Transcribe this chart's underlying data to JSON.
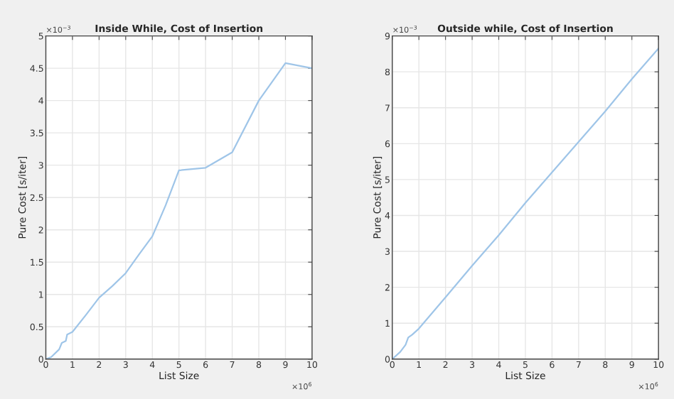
{
  "chart_data": [
    {
      "type": "line",
      "title": "Inside While, Cost of Insertion",
      "xlabel": "List Size",
      "ylabel": "Pure Cost [s/iter]",
      "annotations": [
        "×10$^{−3}$",
        "×10$^{6}$"
      ],
      "x": [
        0,
        0.2,
        0.5,
        0.6,
        0.75,
        0.8,
        1,
        1.5,
        2,
        2.5,
        3,
        3.5,
        4,
        4.5,
        5,
        6,
        7,
        8,
        9,
        10
      ],
      "series": [
        {
          "color": "#9fc5e8",
          "values": [
            0,
            0.03,
            0.15,
            0.25,
            0.28,
            0.38,
            0.42,
            0.68,
            0.95,
            1.13,
            1.33,
            1.62,
            1.9,
            2.38,
            2.92,
            2.96,
            3.2,
            4.0,
            4.58,
            4.5
          ]
        }
      ],
      "xlim": [
        0,
        10
      ],
      "xticks": [
        0,
        1,
        2,
        3,
        4,
        5,
        6,
        7,
        8,
        9,
        10
      ],
      "ylim": [
        0,
        5
      ],
      "yticks": [
        0,
        0.5,
        1,
        1.5,
        2,
        2.5,
        3,
        3.5,
        4,
        4.5,
        5
      ],
      "grid": true
    },
    {
      "type": "line",
      "title": "Outside while, Cost of Insertion",
      "xlabel": "List Size",
      "ylabel": "Pure Cost [s/iter]",
      "annotations": [
        "×10$^{−3}$",
        "×10$^{6}$"
      ],
      "x": [
        0,
        0.3,
        0.5,
        0.6,
        0.75,
        1,
        2,
        3,
        4,
        5,
        6,
        7,
        8,
        9,
        10
      ],
      "series": [
        {
          "color": "#9fc5e8",
          "values": [
            0,
            0.2,
            0.4,
            0.6,
            0.68,
            0.85,
            1.72,
            2.6,
            3.45,
            4.35,
            5.2,
            6.05,
            6.9,
            7.8,
            8.65
          ]
        }
      ],
      "xlim": [
        0,
        10
      ],
      "xticks": [
        0,
        1,
        2,
        3,
        4,
        5,
        6,
        7,
        8,
        9,
        10
      ],
      "ylim": [
        0,
        9
      ],
      "yticks": [
        0,
        1,
        2,
        3,
        4,
        5,
        6,
        7,
        8,
        9
      ],
      "grid": true
    }
  ]
}
